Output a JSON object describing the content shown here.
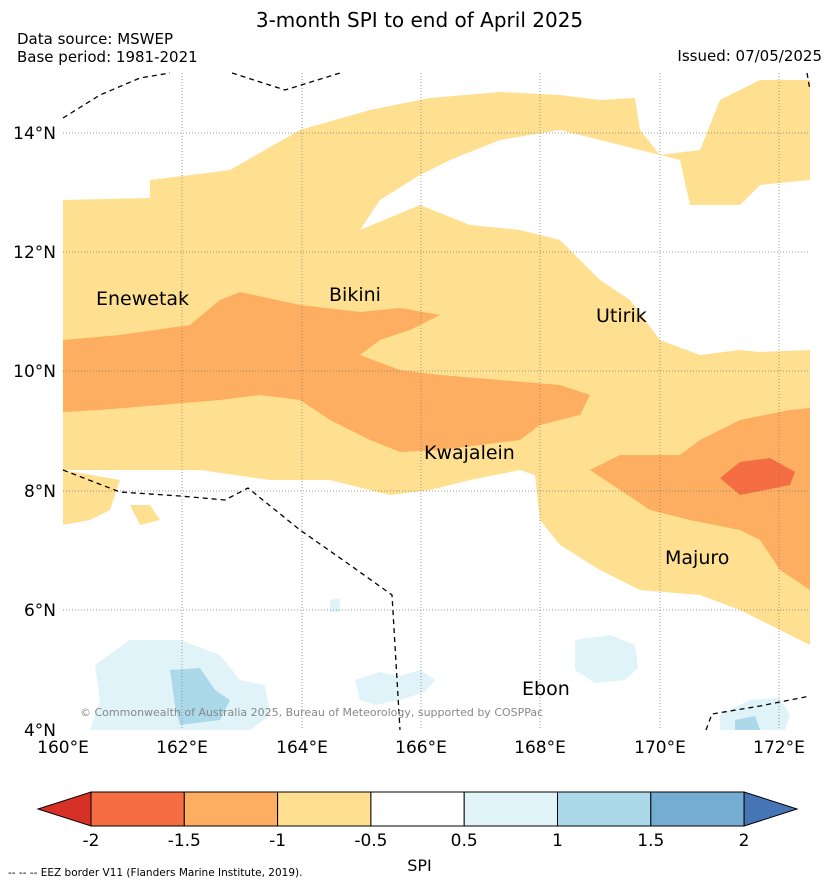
{
  "title": "3-month SPI to end of April 2025",
  "source_lines": [
    "Data source: MSWEP",
    "Base period: 1981-2021"
  ],
  "issued": "Issued: 07/05/2025",
  "lat_labels": [
    "14°N",
    "12°N",
    "10°N",
    "8°N",
    "6°N",
    "4°N"
  ],
  "lon_labels": [
    "160°E",
    "162°E",
    "164°E",
    "166°E",
    "168°E",
    "170°E",
    "172°E"
  ],
  "places": [
    "Enewetak",
    "Bikini",
    "Utirik",
    "Kwajalein",
    "Majuro",
    "Ebon"
  ],
  "copyright": "© Commonwealth of Australia 2025, Bureau of Meteorology, supported by COSPPac",
  "colorbar": {
    "title": "SPI",
    "ticks": [
      "-2",
      "-1.5",
      "-1",
      "-0.5",
      "0.5",
      "1",
      "1.5",
      "2"
    ],
    "colors": [
      "#d73027",
      "#f46d43",
      "#fdae61",
      "#fee090",
      "#ffffff",
      "#e0f3f8",
      "#abd9e9",
      "#74add1",
      "#4575b4"
    ]
  },
  "eez_note": "--  --  -- EEZ border V11 (Flanders Marine Institute, 2019)."
}
